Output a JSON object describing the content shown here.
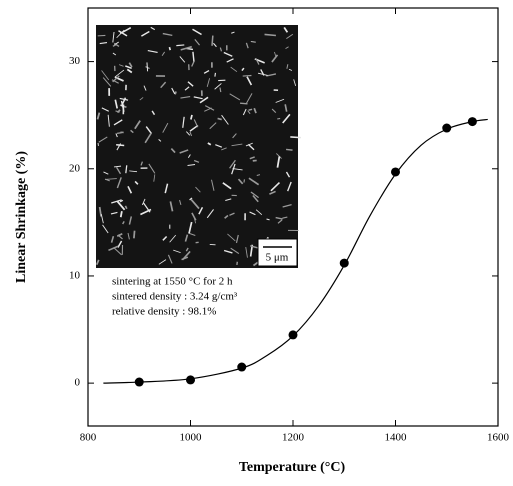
{
  "chart_data": {
    "type": "scatter",
    "xlabel": "Temperature (°C)",
    "ylabel": "Linear Shrinkage (%)",
    "x": [
      900,
      1000,
      1100,
      1200,
      1300,
      1400,
      1500,
      1550
    ],
    "values": [
      0.1,
      0.3,
      1.5,
      4.5,
      11.2,
      19.7,
      23.8,
      24.4
    ],
    "color": "#000000",
    "curve": {
      "x": [
        830,
        900,
        1000,
        1100,
        1150,
        1200,
        1250,
        1300,
        1350,
        1400,
        1450,
        1500,
        1550,
        1580
      ],
      "values": [
        0,
        0.1,
        0.4,
        1.4,
        2.6,
        4.4,
        7.2,
        11,
        15.6,
        19.5,
        22.2,
        23.7,
        24.4,
        24.6
      ]
    },
    "xlim": [
      800,
      1600
    ],
    "xticks": [
      800,
      1000,
      1200,
      1400,
      1600
    ],
    "ylim": [
      -4,
      35
    ],
    "yticks": [
      0,
      10,
      20,
      30
    ],
    "annotations": [
      "sintering at 1550 °C for 2 h",
      "sintered density : 3.24 g/cm³",
      "relative density : 98.1%"
    ],
    "scale_bar": "5 μm"
  }
}
